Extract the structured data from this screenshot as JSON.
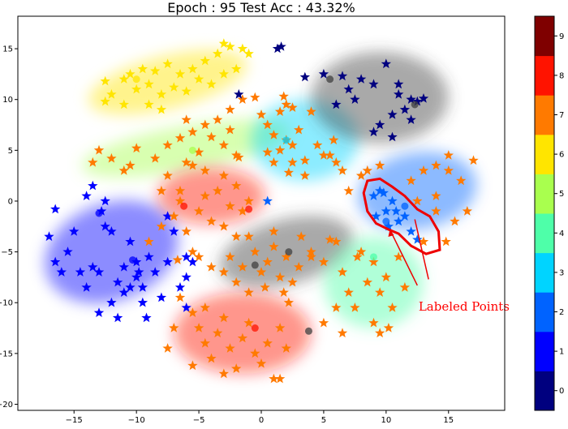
{
  "chart_data": {
    "type": "scatter",
    "title": "Epoch : 95  Test Acc : 43.32%",
    "xlim": [
      -19.5,
      19.5
    ],
    "ylim": [
      -20.6,
      18.2
    ],
    "x_ticks": [
      -15,
      -10,
      -5,
      0,
      5,
      10,
      15
    ],
    "y_ticks": [
      15,
      10,
      5,
      0,
      -5,
      -10,
      -15,
      -20
    ],
    "grid": false,
    "colorbar": {
      "ticks": [
        0,
        1,
        2,
        3,
        4,
        5,
        6,
        7,
        8,
        9
      ],
      "colors": [
        "#00007f",
        "#0000ff",
        "#0063ff",
        "#00d4ff",
        "#4effa9",
        "#a9ff4e",
        "#ffe500",
        "#ff7a00",
        "#ff1300",
        "#7f0000"
      ]
    },
    "clusters": [
      {
        "label": 6,
        "color": "#ffe500",
        "cx": -7.5,
        "cy": 11.7,
        "rx": 6.5,
        "ry": 2.6,
        "rot": -14
      },
      {
        "label": 5,
        "color": "#a9ff4e",
        "cx": -6.0,
        "cy": 5.2,
        "rx": 8.5,
        "ry": 2.2,
        "rot": -10
      },
      {
        "label": 3,
        "color": "#00d4ff",
        "cx": 3.5,
        "cy": 6.0,
        "rx": 4.3,
        "ry": 4.0,
        "rot": 0
      },
      {
        "label": 9,
        "color": "#404040",
        "cx": 9.5,
        "cy": 10.2,
        "rx": 5.5,
        "ry": 4.5,
        "rot": 0
      },
      {
        "label": 2,
        "color": "#0063ff",
        "cx": 12.5,
        "cy": 1.0,
        "rx": 4.8,
        "ry": 3.8,
        "rot": -10
      },
      {
        "label": 1,
        "color": "#0000ff",
        "cx": -12.0,
        "cy": -5.0,
        "rx": 5.5,
        "ry": 4.8,
        "rot": -20
      },
      {
        "label": 8,
        "color": "#ff1300",
        "cx": -4.0,
        "cy": 0.5,
        "rx": 4.3,
        "ry": 2.8,
        "rot": 0
      },
      {
        "label": 9,
        "color": "#404040",
        "cx": 2.0,
        "cy": -5.0,
        "rx": 5.5,
        "ry": 3.2,
        "rot": -15
      },
      {
        "label": 4,
        "color": "#4effa9",
        "cx": 9.0,
        "cy": -8.0,
        "rx": 4.0,
        "ry": 4.5,
        "rot": 0
      },
      {
        "label": 8,
        "color": "#ff1300",
        "cx": -1.5,
        "cy": -13.0,
        "rx": 5.5,
        "ry": 4.0,
        "rot": 0
      }
    ],
    "star_groups": [
      {
        "color": "#ffe500",
        "points": [
          [
            -12.5,
            11.8
          ],
          [
            -12,
            10.5
          ],
          [
            -11,
            12
          ],
          [
            -10.5,
            12.5
          ],
          [
            -10,
            11
          ],
          [
            -9.5,
            13
          ],
          [
            -9,
            11.5
          ],
          [
            -8.5,
            12.8
          ],
          [
            -8,
            10.5
          ],
          [
            -7.5,
            13.5
          ],
          [
            -7,
            11.2
          ],
          [
            -6.5,
            12.5
          ],
          [
            -6,
            10.8
          ],
          [
            -5.5,
            13
          ],
          [
            -5,
            12
          ],
          [
            -4.5,
            13.8
          ],
          [
            -4,
            11.5
          ],
          [
            -3.5,
            14.5
          ],
          [
            -3,
            12.5
          ],
          [
            -3,
            15.5
          ],
          [
            -2.5,
            15.2
          ],
          [
            -2,
            13
          ],
          [
            -1.5,
            15
          ],
          [
            -1,
            14.5
          ],
          [
            -9,
            9.5
          ],
          [
            -8,
            9
          ],
          [
            -11,
            9.5
          ],
          [
            -12.5,
            9.8
          ]
        ]
      },
      {
        "color": "#ff7a00",
        "points": [
          [
            -13.5,
            3.8
          ],
          [
            -12,
            4.2
          ],
          [
            -10.5,
            3.5
          ],
          [
            -10,
            5.2
          ],
          [
            -8.5,
            4.2
          ],
          [
            -7.5,
            5.5
          ],
          [
            -6,
            3.8
          ],
          [
            -5,
            4.8
          ],
          [
            -4,
            6.3
          ],
          [
            -3,
            5.5
          ],
          [
            -2,
            4.5
          ],
          [
            -5.5,
            6.8
          ],
          [
            -6,
            8
          ],
          [
            -6.5,
            6.2
          ],
          [
            -4.5,
            7.5
          ],
          [
            -3.5,
            8
          ],
          [
            -2.5,
            9
          ],
          [
            -1.8,
            4.3
          ],
          [
            -0.5,
            10.2
          ],
          [
            0,
            8.5
          ],
          [
            -1.5,
            10
          ],
          [
            -2.5,
            7
          ],
          [
            -13,
            5
          ],
          [
            -11,
            3
          ]
        ]
      },
      {
        "color": "#ff7a00",
        "points": [
          [
            0.5,
            7.5
          ],
          [
            1,
            6.5
          ],
          [
            1.5,
            5
          ],
          [
            2,
            6
          ],
          [
            2.5,
            5.5
          ],
          [
            3,
            7
          ],
          [
            3.5,
            4
          ],
          [
            1.5,
            8.8
          ],
          [
            2,
            9.5
          ],
          [
            1,
            3.8
          ],
          [
            2.5,
            3.8
          ],
          [
            0.5,
            4.8
          ],
          [
            2.2,
            2.8
          ],
          [
            4.5,
            5.5
          ],
          [
            5,
            4.5
          ],
          [
            5.5,
            4.5
          ],
          [
            6,
            3.8
          ],
          [
            6.5,
            3
          ],
          [
            5.8,
            6
          ],
          [
            4,
            8.8
          ],
          [
            1.8,
            10.3
          ],
          [
            2.5,
            9.2
          ],
          [
            3.5,
            2.5
          ]
        ]
      },
      {
        "color": "#00007f",
        "points": [
          [
            1.3,
            15
          ],
          [
            1.6,
            15.2
          ],
          [
            3.5,
            12.2
          ],
          [
            5,
            12.5
          ],
          [
            6.5,
            12.3
          ],
          [
            7,
            11
          ],
          [
            8,
            12
          ],
          [
            9,
            11.5
          ],
          [
            10,
            13.5
          ],
          [
            11,
            11.5
          ],
          [
            12,
            10
          ],
          [
            12.5,
            9.8
          ],
          [
            11.5,
            9
          ],
          [
            10.5,
            8.5
          ],
          [
            12,
            8
          ],
          [
            9.5,
            7.5
          ],
          [
            9,
            6.8
          ],
          [
            10.5,
            6.3
          ],
          [
            7.5,
            10
          ],
          [
            6,
            9.5
          ],
          [
            11,
            10.5
          ],
          [
            13,
            10.1
          ],
          [
            -1.8,
            10.5
          ]
        ]
      },
      {
        "color": "#0063ff",
        "points": [
          [
            9,
            0.5
          ],
          [
            9.5,
            1
          ],
          [
            10,
            -1
          ],
          [
            10.5,
            0
          ],
          [
            11,
            -2
          ],
          [
            11.5,
            -1.5
          ],
          [
            12,
            -3
          ],
          [
            12.5,
            -3.8
          ],
          [
            9.2,
            -1.5
          ],
          [
            10.8,
            -1
          ],
          [
            9.8,
            0.8
          ],
          [
            0.5,
            0
          ],
          [
            10.2,
            -2.5
          ]
        ]
      },
      {
        "color": "#ff7a00",
        "points": [
          [
            8,
            2.5
          ],
          [
            7,
            1
          ],
          [
            8.5,
            3
          ],
          [
            9.5,
            3.5
          ],
          [
            12,
            2
          ],
          [
            13,
            3
          ],
          [
            14,
            3.5
          ],
          [
            15,
            3
          ],
          [
            16,
            2
          ],
          [
            16.5,
            -1
          ],
          [
            15.5,
            -2
          ],
          [
            14,
            0.5
          ],
          [
            13,
            -4
          ],
          [
            14,
            -1
          ],
          [
            17,
            4
          ],
          [
            15,
            4.5
          ],
          [
            12.5,
            0
          ],
          [
            14.8,
            -4
          ]
        ]
      },
      {
        "color": "#0000ff",
        "points": [
          [
            -17,
            -3.5
          ],
          [
            -16.5,
            -6
          ],
          [
            -16,
            -7
          ],
          [
            -15.5,
            -5
          ],
          [
            -15,
            -3
          ],
          [
            -14.5,
            -7
          ],
          [
            -14,
            -8.5
          ],
          [
            -13.5,
            -6.5
          ],
          [
            -13,
            -7
          ],
          [
            -12.8,
            -1
          ],
          [
            -12.5,
            -2.5
          ],
          [
            -12,
            -3
          ],
          [
            -12,
            -10
          ],
          [
            -11.5,
            -8
          ],
          [
            -11,
            -6.5
          ],
          [
            -11,
            -9
          ],
          [
            -10.5,
            -4
          ],
          [
            -10,
            -6
          ],
          [
            -10,
            -7.5
          ],
          [
            -9.5,
            -8.5
          ],
          [
            -9.5,
            -10
          ],
          [
            -9.2,
            -11.5
          ],
          [
            -9,
            -5.5
          ],
          [
            -8.5,
            -7
          ],
          [
            -8,
            -9.5
          ],
          [
            -7.5,
            -6
          ],
          [
            -7.5,
            -1.5
          ],
          [
            -7,
            -3
          ],
          [
            -6.5,
            -8.5
          ],
          [
            -6,
            -10.5
          ],
          [
            -6,
            -7.5
          ],
          [
            -5.5,
            -6
          ],
          [
            -14,
            0.5
          ],
          [
            -13.5,
            1.5
          ],
          [
            -12.5,
            0
          ],
          [
            -16.5,
            -0.8
          ],
          [
            -9.8,
            -7
          ],
          [
            -10.5,
            -8.5
          ],
          [
            -11.5,
            -11.5
          ],
          [
            -13,
            -11
          ],
          [
            -6,
            -5.5
          ]
        ]
      },
      {
        "color": "#ff7a00",
        "points": [
          [
            -9,
            -4
          ],
          [
            -8,
            -2.5
          ],
          [
            -7,
            -1.5
          ],
          [
            -6.5,
            0
          ],
          [
            -6,
            -3
          ],
          [
            -5.5,
            -5
          ],
          [
            -5,
            -1
          ],
          [
            -4.5,
            0.5
          ],
          [
            -4,
            -2
          ],
          [
            -3.5,
            1
          ],
          [
            -3,
            2.5
          ],
          [
            -2.5,
            -0.5
          ],
          [
            -2,
            1.5
          ],
          [
            -1.5,
            -1
          ],
          [
            -1,
            0
          ],
          [
            -8,
            1
          ],
          [
            -7.5,
            2.5
          ],
          [
            -5.5,
            3.5
          ],
          [
            -4.5,
            3
          ],
          [
            -3,
            -2.5
          ],
          [
            -1,
            -3.5
          ],
          [
            -5,
            -5.5
          ],
          [
            -6.5,
            1
          ],
          [
            -6.7,
            -5.8
          ]
        ]
      },
      {
        "color": "#ff7a00",
        "points": [
          [
            -2.5,
            -5.5
          ],
          [
            -1.5,
            -6.5
          ],
          [
            -0.5,
            -5
          ],
          [
            0,
            -7
          ],
          [
            0.5,
            -6
          ],
          [
            1,
            -4.5
          ],
          [
            1.5,
            -7.5
          ],
          [
            2,
            -5.5
          ],
          [
            2.5,
            -8
          ],
          [
            3,
            -6.5
          ],
          [
            -3,
            -7
          ],
          [
            -2,
            -8
          ],
          [
            -1,
            -9
          ],
          [
            0.3,
            -8.5
          ],
          [
            1.8,
            -9
          ],
          [
            3.2,
            -3.5
          ],
          [
            1,
            -3
          ],
          [
            -2,
            -3.5
          ],
          [
            -4,
            -6.5
          ],
          [
            2.2,
            -10
          ]
        ]
      },
      {
        "color": "#ff7a00",
        "points": [
          [
            4,
            -5.5
          ],
          [
            5,
            -6
          ],
          [
            6,
            -4
          ],
          [
            6.5,
            -7
          ],
          [
            7,
            -9
          ],
          [
            7.5,
            -10.5
          ],
          [
            8,
            -5
          ],
          [
            8.5,
            -8
          ],
          [
            9,
            -6
          ],
          [
            9.5,
            -9
          ],
          [
            10,
            -7.5
          ],
          [
            10.5,
            -10.5
          ],
          [
            11,
            -5.5
          ],
          [
            11.5,
            -8.5
          ],
          [
            9,
            -12
          ],
          [
            9.5,
            -13
          ],
          [
            10.2,
            -12.5
          ],
          [
            6.5,
            -13
          ],
          [
            6,
            -10.5
          ],
          [
            5,
            -12
          ],
          [
            4,
            -5
          ],
          [
            7.7,
            -5.5
          ],
          [
            5.5,
            -3.8
          ]
        ]
      },
      {
        "color": "#ff7a00",
        "points": [
          [
            -6.5,
            -9.5
          ],
          [
            -5.5,
            -11
          ],
          [
            -5,
            -12.5
          ],
          [
            -4.5,
            -14
          ],
          [
            -4,
            -15.5
          ],
          [
            -3.5,
            -13
          ],
          [
            -3,
            -11.5
          ],
          [
            -2.5,
            -14.5
          ],
          [
            -2,
            -16.5
          ],
          [
            -1.5,
            -13.5
          ],
          [
            -1,
            -12
          ],
          [
            -0.5,
            -15
          ],
          [
            0,
            -16
          ],
          [
            0.5,
            -14
          ],
          [
            1,
            -17.5
          ],
          [
            1.5,
            -12.5
          ],
          [
            2,
            -14.5
          ],
          [
            -7,
            -12.5
          ],
          [
            -7.5,
            -14.5
          ],
          [
            -5.5,
            -16.2
          ],
          [
            -3,
            -17
          ],
          [
            -4.5,
            -10.5
          ],
          [
            1.5,
            -17.5
          ]
        ]
      }
    ],
    "center_dots": [
      {
        "x": -10,
        "y": 12,
        "color": "#ffe500"
      },
      {
        "x": -5.5,
        "y": 5,
        "color": "#a9ff4e"
      },
      {
        "x": 2,
        "y": 6,
        "color": "#00d4ff"
      },
      {
        "x": 5.5,
        "y": 12,
        "color": "#404040"
      },
      {
        "x": 12.3,
        "y": 9.5,
        "color": "#404040"
      },
      {
        "x": 11.5,
        "y": -0.5,
        "color": "#0063ff"
      },
      {
        "x": 10,
        "y": -2,
        "color": "#0063ff"
      },
      {
        "x": -13,
        "y": -1.2,
        "color": "#0000ff"
      },
      {
        "x": -10.3,
        "y": -5.8,
        "color": "#0000ff"
      },
      {
        "x": -6.2,
        "y": -0.5,
        "color": "#ff1300"
      },
      {
        "x": -1,
        "y": -0.8,
        "color": "#ff1300"
      },
      {
        "x": -0.5,
        "y": -6.3,
        "color": "#404040"
      },
      {
        "x": 2.2,
        "y": -5,
        "color": "#404040"
      },
      {
        "x": 9,
        "y": -5.5,
        "color": "#4effa9"
      },
      {
        "x": -0.5,
        "y": -12.5,
        "color": "#ff1300"
      },
      {
        "x": 3.8,
        "y": -12.8,
        "color": "#404040"
      }
    ],
    "annotation": {
      "text": "Labeled Points",
      "color": "#ff0000"
    }
  }
}
